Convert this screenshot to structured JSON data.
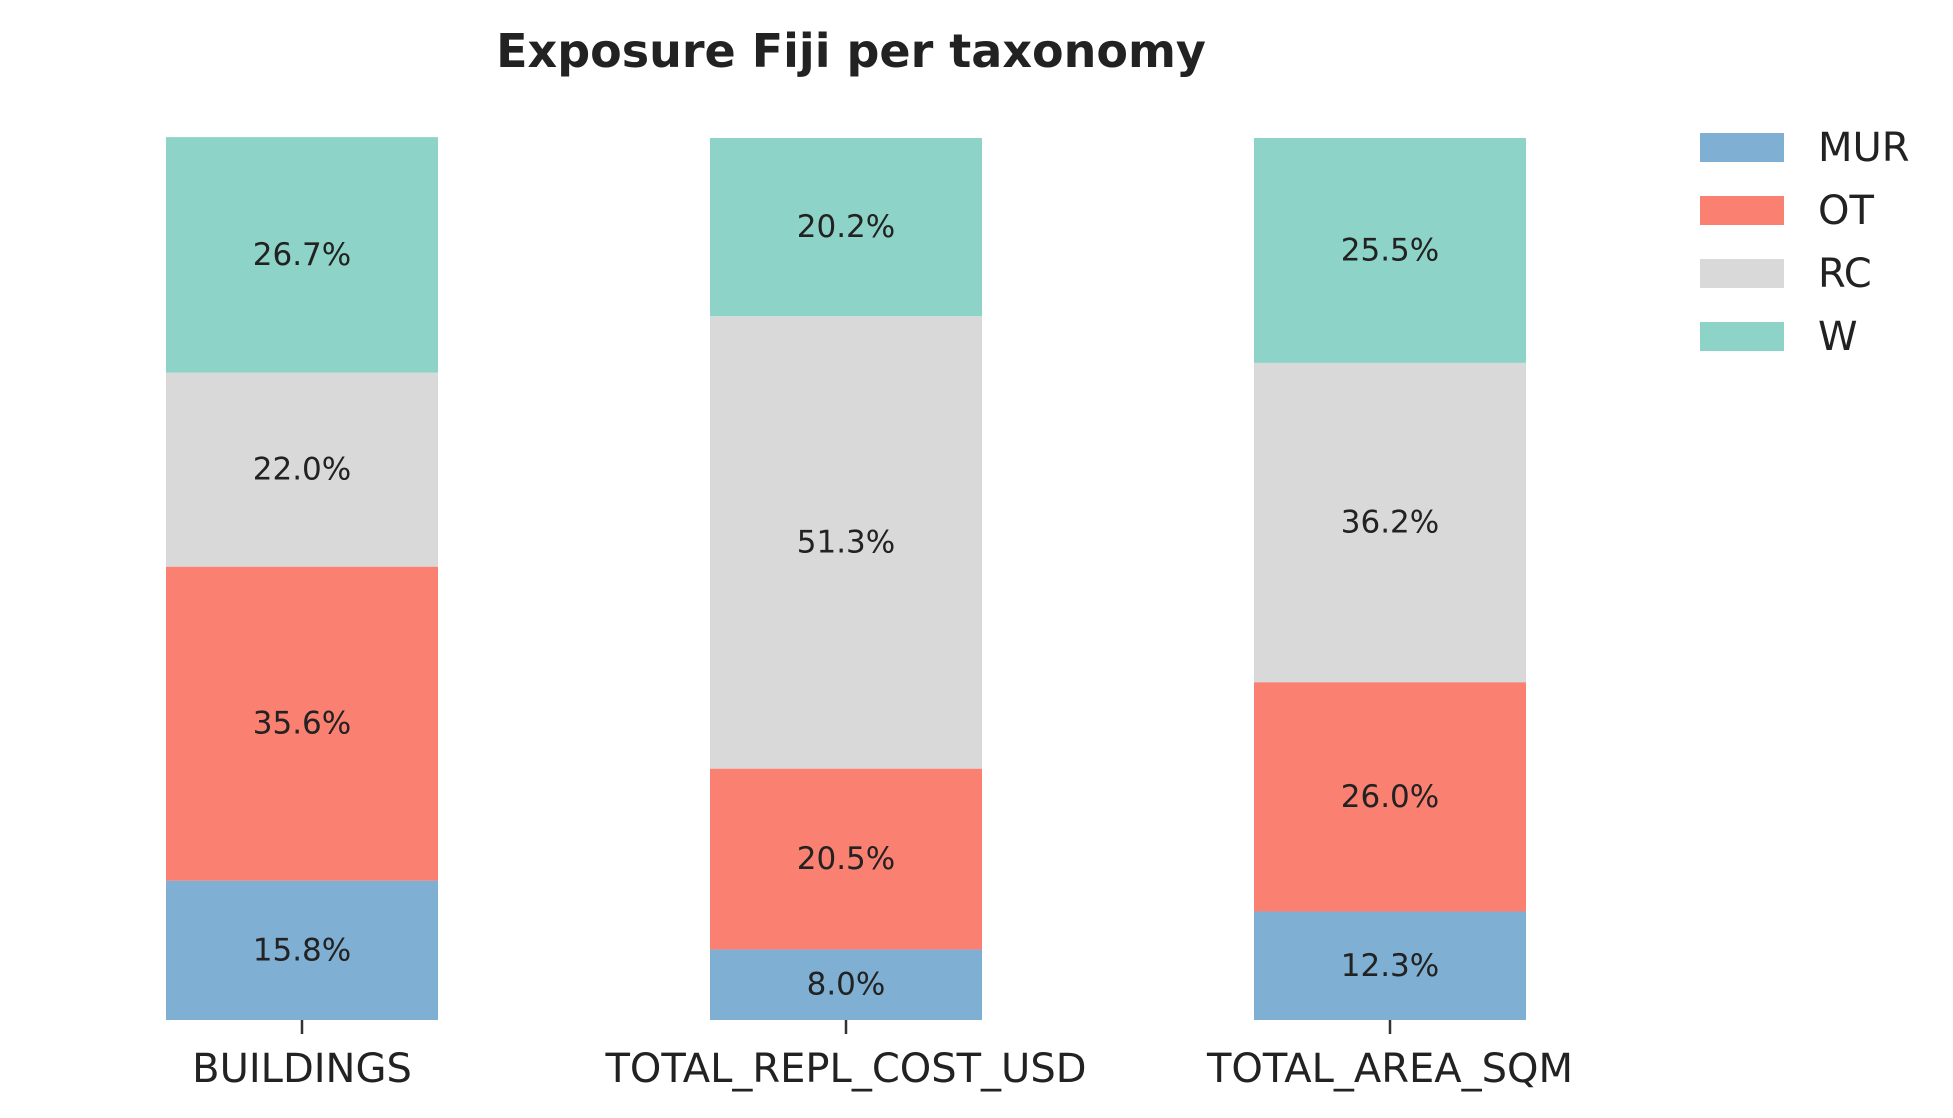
{
  "chart_data": {
    "type": "bar",
    "stacked": true,
    "normalized": true,
    "title": "Exposure Fiji per taxonomy",
    "xlabel": "",
    "ylabel": "",
    "ylim": [
      0,
      100
    ],
    "grid": false,
    "legend_position": "top-right",
    "categories": [
      "BUILDINGS",
      "TOTAL_REPL_COST_USD",
      "TOTAL_AREA_SQM"
    ],
    "series": [
      {
        "name": "MUR",
        "color": "#7fafd2",
        "values": [
          15.8,
          8.0,
          12.3
        ],
        "labels": [
          "15.8%",
          "8.0%",
          "12.3%"
        ]
      },
      {
        "name": "OT",
        "color": "#fa8072",
        "values": [
          35.6,
          20.5,
          26.0
        ],
        "labels": [
          "35.6%",
          "20.5%",
          "26.0%"
        ]
      },
      {
        "name": "RC",
        "color": "#d9d9d9",
        "values": [
          22.0,
          51.3,
          36.2
        ],
        "labels": [
          "22.0%",
          "51.3%",
          "36.2%"
        ]
      },
      {
        "name": "W",
        "color": "#8dd3c7",
        "values": [
          26.7,
          20.2,
          25.5
        ],
        "labels": [
          "26.7%",
          "20.2%",
          "25.5%"
        ]
      }
    ]
  }
}
